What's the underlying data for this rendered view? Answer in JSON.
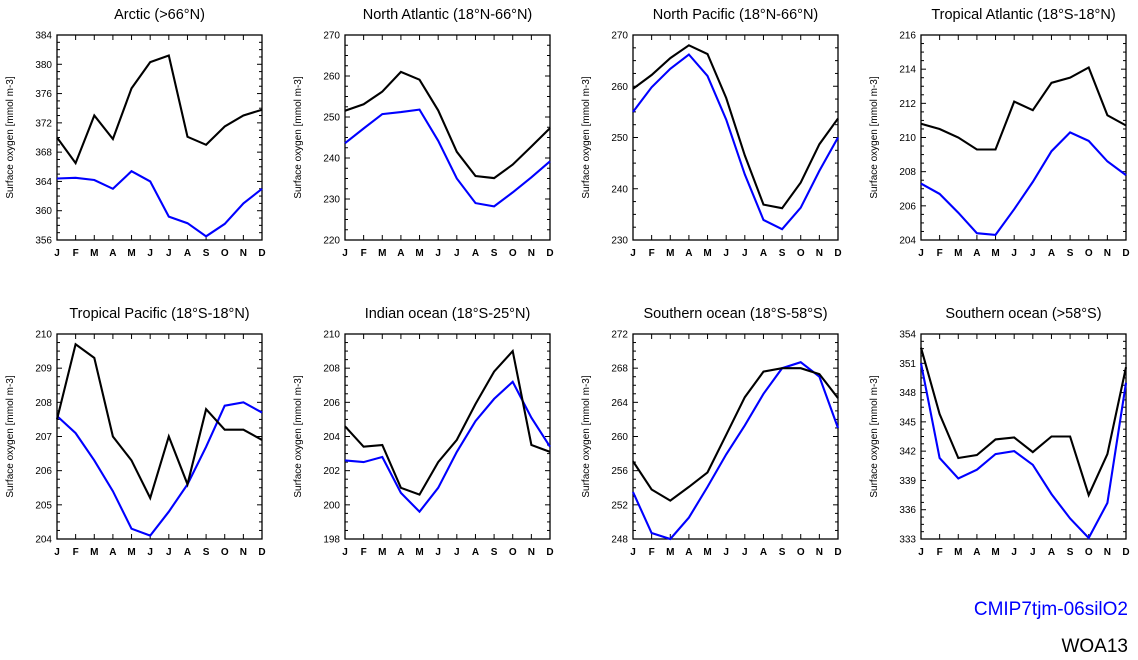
{
  "colors": {
    "model": "#0000ff",
    "observation": "#000000",
    "axis": "#000000"
  },
  "legend": {
    "model": "CMIP7tjm-06silO2",
    "observation": "WOA13"
  },
  "chart_data": [
    {
      "type": "line",
      "title": "Arctic (>66°N)",
      "ylabel": "Surface oxygen [mmol m-3]",
      "categories": [
        "J",
        "F",
        "M",
        "A",
        "M",
        "J",
        "J",
        "A",
        "S",
        "O",
        "N",
        "D"
      ],
      "ylim": [
        356,
        384
      ],
      "yticks": [
        356,
        360,
        364,
        368,
        372,
        376,
        380,
        384
      ],
      "series": [
        {
          "name": "CMIP7tjm-06silO2",
          "values": [
            364.4,
            364.5,
            364.2,
            363.0,
            365.4,
            364.0,
            359.2,
            358.3,
            356.5,
            358.2,
            361.0,
            363.0
          ]
        },
        {
          "name": "WOA13",
          "values": [
            370.0,
            366.5,
            373.0,
            369.8,
            376.7,
            380.3,
            381.2,
            370.1,
            369.0,
            371.5,
            373.0,
            373.8
          ]
        }
      ]
    },
    {
      "type": "line",
      "title": "North Atlantic (18°N-66°N)",
      "ylabel": "Surface oxygen [mmol m-3]",
      "categories": [
        "J",
        "F",
        "M",
        "A",
        "M",
        "J",
        "J",
        "A",
        "S",
        "O",
        "N",
        "D"
      ],
      "ylim": [
        220,
        270
      ],
      "yticks": [
        220,
        230,
        240,
        250,
        260,
        270
      ],
      "series": [
        {
          "name": "CMIP7tjm-06silO2",
          "values": [
            243.6,
            247.2,
            250.7,
            251.2,
            251.8,
            244.2,
            235.0,
            229.0,
            228.2,
            231.6,
            235.3,
            239.2
          ]
        },
        {
          "name": "WOA13",
          "values": [
            251.5,
            253.1,
            256.2,
            261.0,
            259.1,
            251.6,
            241.5,
            235.6,
            235.1,
            238.4,
            242.8,
            247.3
          ]
        }
      ]
    },
    {
      "type": "line",
      "title": "North Pacific (18°N-66°N)",
      "ylabel": "Surface oxygen [mmol m-3]",
      "categories": [
        "J",
        "F",
        "M",
        "A",
        "M",
        "J",
        "J",
        "A",
        "S",
        "O",
        "N",
        "D"
      ],
      "ylim": [
        230,
        270
      ],
      "yticks": [
        230,
        240,
        250,
        260,
        270
      ],
      "series": [
        {
          "name": "CMIP7tjm-06silO2",
          "values": [
            255.0,
            259.8,
            263.4,
            266.2,
            262.0,
            253.5,
            242.8,
            233.9,
            232.1,
            236.3,
            243.5,
            250.0
          ]
        },
        {
          "name": "WOA13",
          "values": [
            259.5,
            262.2,
            265.5,
            268.0,
            266.3,
            257.7,
            246.5,
            236.9,
            236.2,
            241.2,
            248.7,
            253.7
          ]
        }
      ]
    },
    {
      "type": "line",
      "title": "Tropical Atlantic (18°S-18°N)",
      "ylabel": "Surface oxygen [mmol m-3]",
      "categories": [
        "J",
        "F",
        "M",
        "A",
        "M",
        "J",
        "J",
        "A",
        "S",
        "O",
        "N",
        "D"
      ],
      "ylim": [
        204,
        216
      ],
      "yticks": [
        204,
        206,
        208,
        210,
        212,
        214,
        216
      ],
      "series": [
        {
          "name": "CMIP7tjm-06silO2",
          "values": [
            207.3,
            206.7,
            205.6,
            204.4,
            204.3,
            205.8,
            207.4,
            209.2,
            210.3,
            209.8,
            208.6,
            207.8
          ]
        },
        {
          "name": "WOA13",
          "values": [
            210.8,
            210.5,
            210.0,
            209.3,
            209.3,
            212.1,
            211.6,
            213.2,
            213.5,
            214.1,
            211.3,
            210.7
          ]
        }
      ]
    },
    {
      "type": "line",
      "title": "Tropical Pacific (18°S-18°N)",
      "ylabel": "Surface oxygen [mmol m-3]",
      "categories": [
        "J",
        "F",
        "M",
        "A",
        "M",
        "J",
        "J",
        "A",
        "S",
        "O",
        "N",
        "D"
      ],
      "ylim": [
        204,
        210
      ],
      "yticks": [
        204,
        205,
        206,
        207,
        208,
        209,
        210
      ],
      "series": [
        {
          "name": "CMIP7tjm-06silO2",
          "values": [
            207.6,
            207.1,
            206.3,
            205.4,
            204.3,
            204.1,
            204.8,
            205.6,
            206.7,
            207.9,
            208.0,
            207.7
          ]
        },
        {
          "name": "WOA13",
          "values": [
            207.5,
            209.7,
            209.3,
            207.0,
            206.3,
            205.2,
            207.0,
            205.6,
            207.8,
            207.2,
            207.2,
            206.9
          ]
        }
      ]
    },
    {
      "type": "line",
      "title": "Indian ocean (18°S-25°N)",
      "ylabel": "Surface oxygen [mmol m-3]",
      "categories": [
        "J",
        "F",
        "M",
        "A",
        "M",
        "J",
        "J",
        "A",
        "S",
        "O",
        "N",
        "D"
      ],
      "ylim": [
        198,
        210
      ],
      "yticks": [
        198,
        200,
        202,
        204,
        206,
        208,
        210
      ],
      "series": [
        {
          "name": "CMIP7tjm-06silO2",
          "values": [
            202.6,
            202.5,
            202.8,
            200.7,
            199.6,
            201.0,
            203.1,
            204.9,
            206.2,
            207.2,
            205.1,
            203.4
          ]
        },
        {
          "name": "WOA13",
          "values": [
            204.6,
            203.4,
            203.5,
            201.0,
            200.6,
            202.5,
            203.8,
            205.9,
            207.8,
            209.0,
            203.5,
            203.1
          ]
        }
      ]
    },
    {
      "type": "line",
      "title": "Southern ocean (18°S-58°S)",
      "ylabel": "Surface oxygen [mmol m-3]",
      "categories": [
        "J",
        "F",
        "M",
        "A",
        "M",
        "J",
        "J",
        "A",
        "S",
        "O",
        "N",
        "D"
      ],
      "ylim": [
        248,
        272
      ],
      "yticks": [
        248,
        252,
        256,
        260,
        264,
        268,
        272
      ],
      "series": [
        {
          "name": "CMIP7tjm-06silO2",
          "values": [
            253.5,
            248.7,
            248.0,
            250.5,
            254.1,
            257.9,
            261.3,
            265.0,
            268.0,
            268.7,
            267.0,
            261.0
          ]
        },
        {
          "name": "WOA13",
          "values": [
            257.1,
            253.8,
            252.5,
            254.1,
            255.8,
            260.2,
            264.6,
            267.6,
            268.0,
            268.0,
            267.3,
            264.5
          ]
        }
      ]
    },
    {
      "type": "line",
      "title": "Southern ocean (>58°S)",
      "ylabel": "Surface oxygen [mmol m-3]",
      "categories": [
        "J",
        "F",
        "M",
        "A",
        "M",
        "J",
        "J",
        "A",
        "S",
        "O",
        "N",
        "D"
      ],
      "ylim": [
        333,
        354
      ],
      "yticks": [
        333,
        336,
        339,
        342,
        345,
        348,
        351,
        354
      ],
      "series": [
        {
          "name": "CMIP7tjm-06silO2",
          "values": [
            351.0,
            341.3,
            339.2,
            340.1,
            341.7,
            342.0,
            340.6,
            337.6,
            335.1,
            333.1,
            336.7,
            349.0
          ]
        },
        {
          "name": "WOA13",
          "values": [
            352.6,
            345.8,
            341.3,
            341.6,
            343.2,
            343.4,
            341.9,
            343.5,
            343.5,
            337.5,
            341.7,
            350.6
          ]
        }
      ]
    }
  ]
}
